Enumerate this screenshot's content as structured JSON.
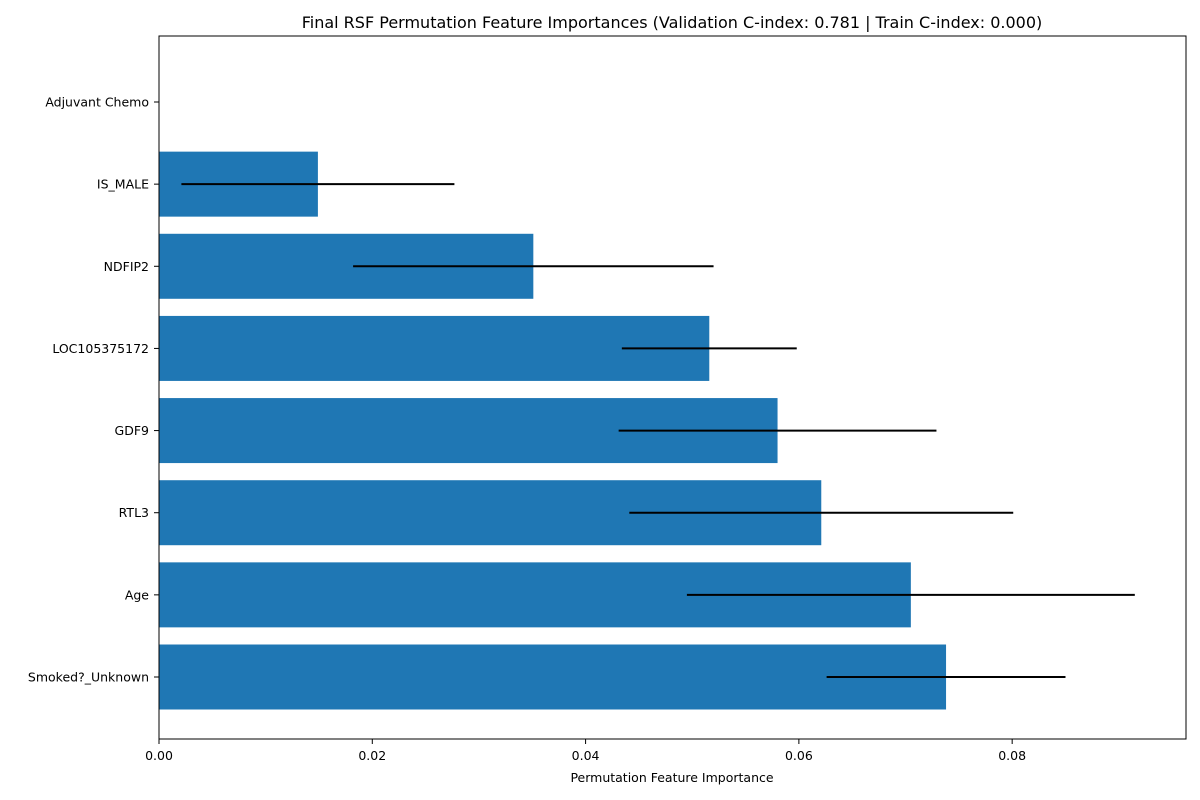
{
  "chart_data": {
    "type": "bar",
    "orientation": "horizontal",
    "title": "Final RSF Permutation Feature Importances (Validation C-index: 0.781 | Train C-index: 0.000)",
    "xlabel": "Permutation Feature Importance",
    "ylabel": "",
    "categories": [
      "Smoked?_Unknown",
      "Age",
      "RTL3",
      "GDF9",
      "LOC105375172",
      "NDFIP2",
      "IS_MALE",
      "Adjuvant Chemo"
    ],
    "values": [
      0.0738,
      0.0705,
      0.0621,
      0.058,
      0.0516,
      0.0351,
      0.0149,
      0.0
    ],
    "errors": [
      0.0112,
      0.021,
      0.018,
      0.0149,
      0.0082,
      0.0169,
      0.0128,
      0.0
    ],
    "xlim": [
      0.0,
      0.0963
    ],
    "xticks": [
      "0.00",
      "0.02",
      "0.04",
      "0.06",
      "0.08"
    ],
    "xtick_values": [
      0.0,
      0.02,
      0.04,
      0.06,
      0.08
    ],
    "bar_color": "#1f77b4",
    "error_color": "#000000",
    "grid": false,
    "legend": "none"
  }
}
